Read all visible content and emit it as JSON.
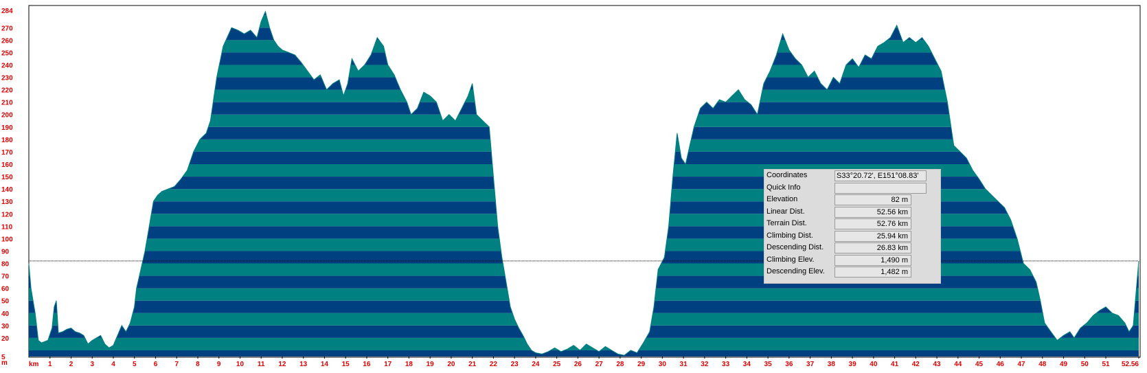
{
  "chart_data": {
    "type": "area",
    "y_unit": "m",
    "x_unit": "km",
    "ylim": [
      5,
      284
    ],
    "xlim": [
      0,
      52.56
    ],
    "y_ticks": [
      "5",
      "20",
      "30",
      "40",
      "50",
      "60",
      "70",
      "80",
      "90",
      "100",
      "110",
      "120",
      "130",
      "140",
      "150",
      "160",
      "170",
      "180",
      "190",
      "200",
      "210",
      "220",
      "230",
      "240",
      "250",
      "260",
      "270",
      "284"
    ],
    "x_ticks": [
      "1",
      "2",
      "3",
      "4",
      "5",
      "6",
      "7",
      "8",
      "9",
      "10",
      "11",
      "12",
      "13",
      "14",
      "15",
      "16",
      "17",
      "18",
      "19",
      "20",
      "21",
      "22",
      "23",
      "24",
      "25",
      "26",
      "27",
      "28",
      "29",
      "30",
      "31",
      "32",
      "33",
      "34",
      "35",
      "36",
      "37",
      "38",
      "39",
      "40",
      "41",
      "42",
      "43",
      "44",
      "45",
      "46",
      "47",
      "48",
      "49",
      "50",
      "51",
      "52.56"
    ],
    "stripe_step": 10,
    "stripe_colors": [
      "#004080",
      "#008080"
    ],
    "cursor_elevation": 82,
    "profile": [
      [
        0,
        80
      ],
      [
        0.1,
        60
      ],
      [
        0.3,
        40
      ],
      [
        0.45,
        18
      ],
      [
        0.6,
        16
      ],
      [
        0.9,
        18
      ],
      [
        1.1,
        28
      ],
      [
        1.2,
        45
      ],
      [
        1.3,
        50
      ],
      [
        1.4,
        24
      ],
      [
        1.6,
        25
      ],
      [
        1.8,
        27
      ],
      [
        2.0,
        28
      ],
      [
        2.2,
        25
      ],
      [
        2.4,
        24
      ],
      [
        2.6,
        22
      ],
      [
        2.8,
        15
      ],
      [
        3.0,
        18
      ],
      [
        3.2,
        20
      ],
      [
        3.4,
        22
      ],
      [
        3.6,
        15
      ],
      [
        3.8,
        12
      ],
      [
        4.0,
        14
      ],
      [
        4.2,
        22
      ],
      [
        4.4,
        30
      ],
      [
        4.6,
        25
      ],
      [
        4.8,
        32
      ],
      [
        5.0,
        45
      ],
      [
        5.1,
        60
      ],
      [
        5.3,
        75
      ],
      [
        5.5,
        90
      ],
      [
        5.7,
        110
      ],
      [
        5.9,
        130
      ],
      [
        6.1,
        135
      ],
      [
        6.3,
        138
      ],
      [
        6.6,
        140
      ],
      [
        6.9,
        142
      ],
      [
        7.2,
        148
      ],
      [
        7.5,
        155
      ],
      [
        7.8,
        170
      ],
      [
        8.1,
        180
      ],
      [
        8.4,
        185
      ],
      [
        8.6,
        195
      ],
      [
        8.9,
        230
      ],
      [
        9.2,
        255
      ],
      [
        9.6,
        270
      ],
      [
        9.9,
        268
      ],
      [
        10.2,
        265
      ],
      [
        10.5,
        268
      ],
      [
        10.8,
        262
      ],
      [
        11.0,
        275
      ],
      [
        11.2,
        283
      ],
      [
        11.4,
        270
      ],
      [
        11.6,
        260
      ],
      [
        11.8,
        255
      ],
      [
        12.0,
        252
      ],
      [
        12.3,
        250
      ],
      [
        12.6,
        248
      ],
      [
        12.9,
        242
      ],
      [
        13.2,
        235
      ],
      [
        13.5,
        228
      ],
      [
        13.8,
        232
      ],
      [
        14.1,
        220
      ],
      [
        14.4,
        225
      ],
      [
        14.7,
        228
      ],
      [
        14.9,
        215
      ],
      [
        15.1,
        225
      ],
      [
        15.3,
        245
      ],
      [
        15.6,
        235
      ],
      [
        15.9,
        240
      ],
      [
        16.2,
        248
      ],
      [
        16.5,
        262
      ],
      [
        16.8,
        255
      ],
      [
        17.0,
        240
      ],
      [
        17.3,
        232
      ],
      [
        17.6,
        220
      ],
      [
        17.9,
        210
      ],
      [
        18.1,
        200
      ],
      [
        18.4,
        205
      ],
      [
        18.7,
        218
      ],
      [
        19.0,
        215
      ],
      [
        19.3,
        210
      ],
      [
        19.6,
        195
      ],
      [
        19.9,
        200
      ],
      [
        20.2,
        195
      ],
      [
        20.5,
        205
      ],
      [
        20.8,
        215
      ],
      [
        21.0,
        225
      ],
      [
        21.2,
        200
      ],
      [
        21.5,
        195
      ],
      [
        21.8,
        190
      ],
      [
        22.0,
        150
      ],
      [
        22.2,
        110
      ],
      [
        22.4,
        85
      ],
      [
        22.6,
        65
      ],
      [
        22.8,
        45
      ],
      [
        23.0,
        35
      ],
      [
        23.2,
        28
      ],
      [
        23.4,
        22
      ],
      [
        23.6,
        15
      ],
      [
        23.8,
        10
      ],
      [
        24.0,
        8
      ],
      [
        24.3,
        7
      ],
      [
        24.6,
        9
      ],
      [
        24.9,
        12
      ],
      [
        25.2,
        9
      ],
      [
        25.5,
        11
      ],
      [
        25.8,
        14
      ],
      [
        26.1,
        10
      ],
      [
        26.4,
        15
      ],
      [
        26.7,
        12
      ],
      [
        27.0,
        9
      ],
      [
        27.3,
        13
      ],
      [
        27.6,
        10
      ],
      [
        27.9,
        7
      ],
      [
        28.2,
        6
      ],
      [
        28.5,
        10
      ],
      [
        28.8,
        8
      ],
      [
        29.1,
        16
      ],
      [
        29.4,
        25
      ],
      [
        29.6,
        45
      ],
      [
        29.8,
        75
      ],
      [
        30.1,
        85
      ],
      [
        30.3,
        110
      ],
      [
        30.5,
        150
      ],
      [
        30.7,
        185
      ],
      [
        30.9,
        165
      ],
      [
        31.1,
        160
      ],
      [
        31.3,
        175
      ],
      [
        31.5,
        190
      ],
      [
        31.8,
        205
      ],
      [
        32.1,
        210
      ],
      [
        32.4,
        205
      ],
      [
        32.7,
        212
      ],
      [
        33.0,
        210
      ],
      [
        33.3,
        215
      ],
      [
        33.6,
        220
      ],
      [
        33.9,
        212
      ],
      [
        34.2,
        208
      ],
      [
        34.5,
        200
      ],
      [
        34.8,
        225
      ],
      [
        35.1,
        235
      ],
      [
        35.4,
        248
      ],
      [
        35.7,
        265
      ],
      [
        36.0,
        252
      ],
      [
        36.3,
        245
      ],
      [
        36.6,
        240
      ],
      [
        36.9,
        230
      ],
      [
        37.2,
        235
      ],
      [
        37.5,
        225
      ],
      [
        37.8,
        220
      ],
      [
        38.1,
        230
      ],
      [
        38.4,
        225
      ],
      [
        38.7,
        240
      ],
      [
        39.0,
        245
      ],
      [
        39.3,
        238
      ],
      [
        39.6,
        248
      ],
      [
        39.9,
        245
      ],
      [
        40.2,
        255
      ],
      [
        40.5,
        258
      ],
      [
        40.8,
        262
      ],
      [
        41.1,
        272
      ],
      [
        41.4,
        258
      ],
      [
        41.7,
        262
      ],
      [
        42.0,
        258
      ],
      [
        42.3,
        262
      ],
      [
        42.6,
        255
      ],
      [
        42.9,
        245
      ],
      [
        43.2,
        235
      ],
      [
        43.5,
        210
      ],
      [
        43.8,
        175
      ],
      [
        44.1,
        170
      ],
      [
        44.4,
        165
      ],
      [
        44.7,
        155
      ],
      [
        45.0,
        148
      ],
      [
        45.3,
        140
      ],
      [
        45.6,
        135
      ],
      [
        45.9,
        130
      ],
      [
        46.2,
        125
      ],
      [
        46.5,
        115
      ],
      [
        46.8,
        100
      ],
      [
        47.1,
        80
      ],
      [
        47.4,
        75
      ],
      [
        47.7,
        65
      ],
      [
        47.9,
        50
      ],
      [
        48.1,
        32
      ],
      [
        48.4,
        25
      ],
      [
        48.7,
        18
      ],
      [
        49.0,
        22
      ],
      [
        49.3,
        25
      ],
      [
        49.5,
        20
      ],
      [
        49.8,
        28
      ],
      [
        50.1,
        32
      ],
      [
        50.4,
        38
      ],
      [
        50.7,
        42
      ],
      [
        51.0,
        45
      ],
      [
        51.3,
        40
      ],
      [
        51.6,
        38
      ],
      [
        51.9,
        32
      ],
      [
        52.1,
        25
      ],
      [
        52.3,
        30
      ],
      [
        52.45,
        60
      ],
      [
        52.56,
        82
      ]
    ]
  },
  "info_panel": {
    "rows": [
      {
        "label": "Coordinates",
        "value": "S33°20.72', E151°08.83'"
      },
      {
        "label": "Quick Info",
        "value": ""
      },
      {
        "label": "Elevation",
        "value": "82 m"
      },
      {
        "label": "Linear Dist.",
        "value": "52.56 km"
      },
      {
        "label": "Terrain Dist.",
        "value": "52.76 km"
      },
      {
        "label": "Climbing Dist.",
        "value": "25.94 km"
      },
      {
        "label": "Descending Dist.",
        "value": "26.83 km"
      },
      {
        "label": "Climbing Elev.",
        "value": "1,490 m"
      },
      {
        "label": "Descending Elev.",
        "value": "1,482 m"
      }
    ]
  }
}
